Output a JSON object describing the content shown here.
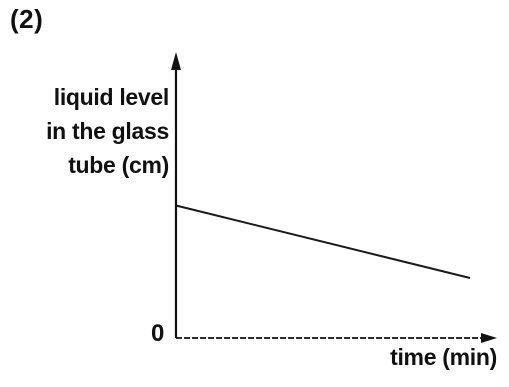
{
  "figure_label": "(2)",
  "chart_data": {
    "type": "line",
    "title": "",
    "ylabel_lines": [
      "liquid level",
      "in the glass",
      "tube (cm)"
    ],
    "xlabel": "time (min)",
    "origin_label": "0",
    "grid": false,
    "legend": "none",
    "xlim": [
      0,
      10
    ],
    "ylim": [
      0,
      10
    ],
    "series": [
      {
        "x": [
          0,
          10
        ],
        "y": [
          5.3,
          2.4
        ],
        "color": "#1a1a1a"
      }
    ]
  }
}
